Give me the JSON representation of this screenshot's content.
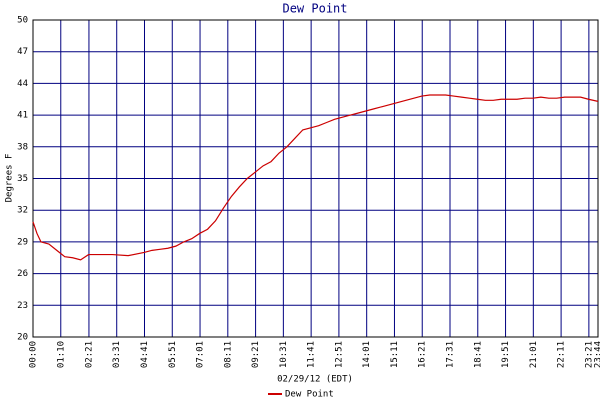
{
  "chart_data": {
    "type": "line",
    "title": "Dew Point",
    "x_label": "02/29/12 (EDT)",
    "y_label": "Degrees F",
    "x": [
      0,
      10,
      20,
      40,
      60,
      80,
      100,
      120,
      140,
      160,
      200,
      240,
      280,
      300,
      320,
      340,
      360,
      380,
      400,
      420,
      440,
      460,
      480,
      500,
      520,
      540,
      560,
      580,
      600,
      620,
      640,
      660,
      680,
      700,
      720,
      740,
      760,
      780,
      800,
      820,
      840,
      860,
      880,
      900,
      920,
      940,
      960,
      980,
      1000,
      1020,
      1040,
      1060,
      1080,
      1100,
      1120,
      1140,
      1160,
      1180,
      1200,
      1220,
      1240,
      1260,
      1280,
      1300,
      1320,
      1340,
      1360,
      1380,
      1400,
      1424
    ],
    "series": [
      {
        "name": "Dew Point",
        "color": "#cc0000",
        "values": [
          30.9,
          29.8,
          29.0,
          28.8,
          28.2,
          27.6,
          27.5,
          27.3,
          27.8,
          27.8,
          27.8,
          27.7,
          28.0,
          28.2,
          28.3,
          28.4,
          28.6,
          29.0,
          29.3,
          29.8,
          30.2,
          31.0,
          32.2,
          33.3,
          34.2,
          35.0,
          35.6,
          36.2,
          36.6,
          37.4,
          38.0,
          38.8,
          39.6,
          39.8,
          40.0,
          40.3,
          40.6,
          40.8,
          41.0,
          41.2,
          41.4,
          41.6,
          41.8,
          42.0,
          42.2,
          42.4,
          42.6,
          42.8,
          42.9,
          42.9,
          42.9,
          42.8,
          42.7,
          42.6,
          42.5,
          42.4,
          42.4,
          42.5,
          42.5,
          42.5,
          42.6,
          42.6,
          42.7,
          42.6,
          42.6,
          42.7,
          42.7,
          42.7,
          42.5,
          42.3
        ]
      }
    ],
    "xlim": [
      0,
      1424
    ],
    "xticks": [
      {
        "value": 0,
        "label": "00:00"
      },
      {
        "value": 70,
        "label": "01:10"
      },
      {
        "value": 141,
        "label": "02:21"
      },
      {
        "value": 211,
        "label": "03:31"
      },
      {
        "value": 281,
        "label": "04:41"
      },
      {
        "value": 351,
        "label": "05:51"
      },
      {
        "value": 421,
        "label": "07:01"
      },
      {
        "value": 491,
        "label": "08:11"
      },
      {
        "value": 561,
        "label": "09:21"
      },
      {
        "value": 631,
        "label": "10:31"
      },
      {
        "value": 701,
        "label": "11:41"
      },
      {
        "value": 771,
        "label": "12:51"
      },
      {
        "value": 841,
        "label": "14:01"
      },
      {
        "value": 911,
        "label": "15:11"
      },
      {
        "value": 981,
        "label": "16:21"
      },
      {
        "value": 1051,
        "label": "17:31"
      },
      {
        "value": 1121,
        "label": "18:41"
      },
      {
        "value": 1191,
        "label": "19:51"
      },
      {
        "value": 1261,
        "label": "21:01"
      },
      {
        "value": 1331,
        "label": "22:11"
      },
      {
        "value": 1401,
        "label": "23:21"
      },
      {
        "value": 1424,
        "label": "23:44"
      }
    ],
    "ylim": [
      20,
      50
    ],
    "yticks": [
      20,
      23,
      26,
      29,
      32,
      35,
      38,
      41,
      44,
      47,
      50
    ],
    "grid": true,
    "grid_color": "#000080"
  }
}
